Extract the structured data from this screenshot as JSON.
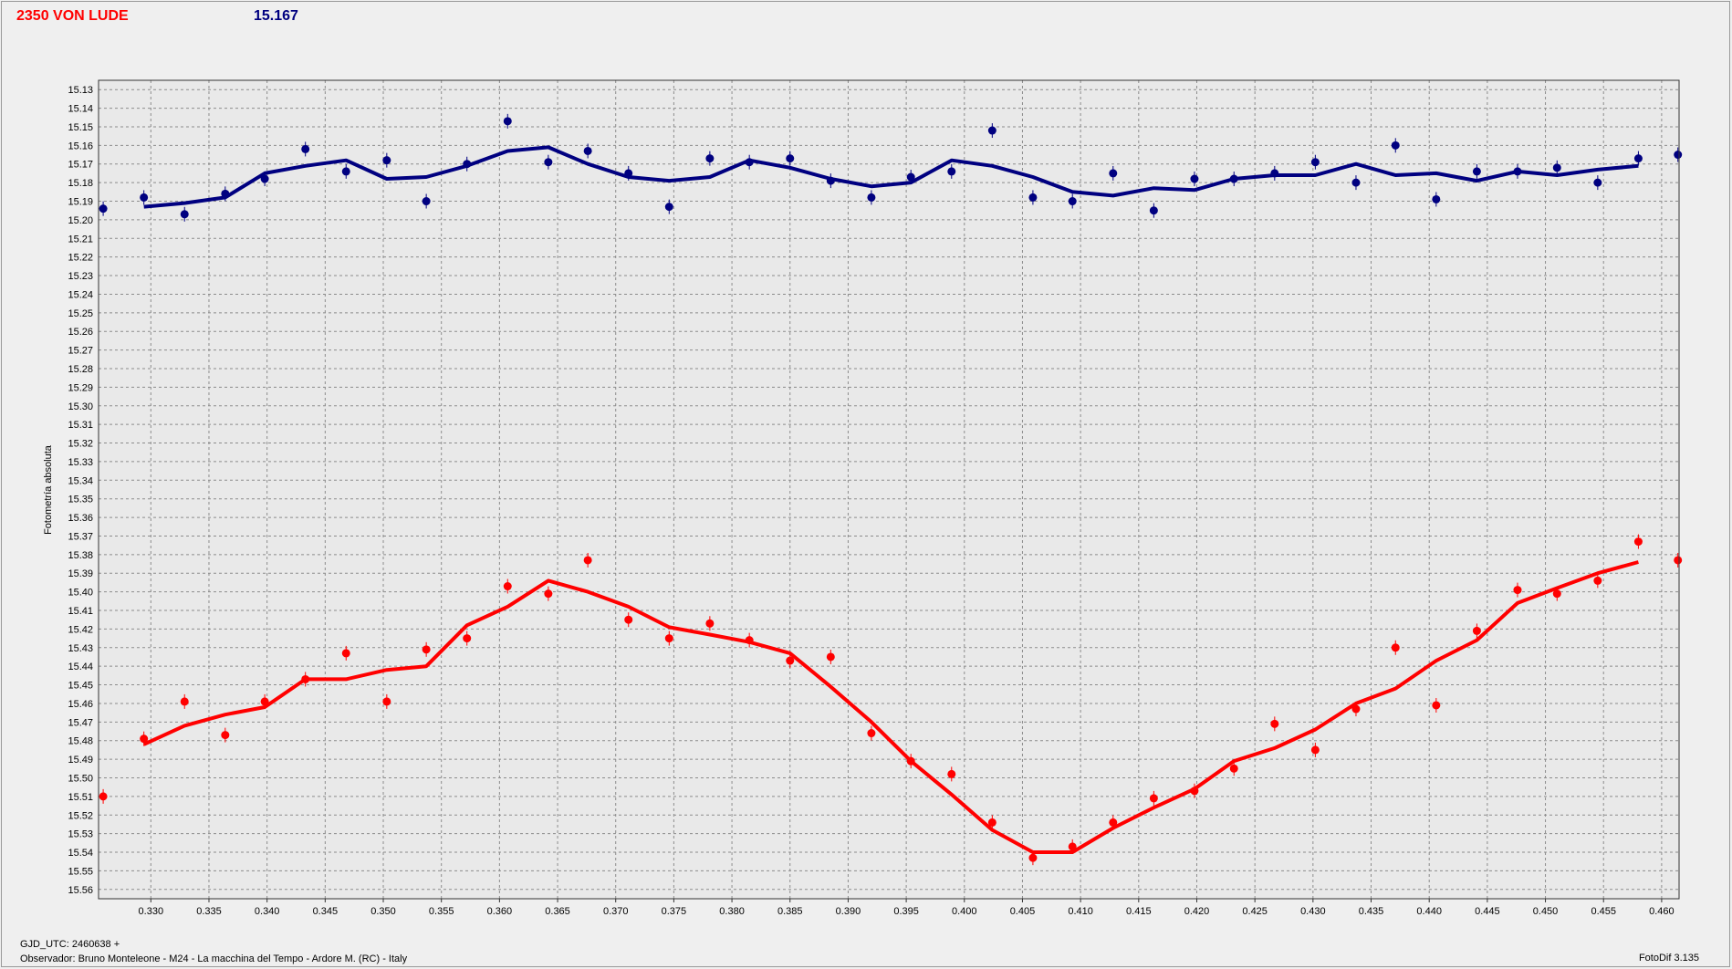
{
  "header": {
    "title": "2350 VON LUDE",
    "magnitude": "15.167"
  },
  "footer": {
    "gjd": "GJD_UTC: 2460638 +",
    "observer": "Observador: Bruno Monteleone - M24 - La macchina del Tempo - Ardore M. (RC) - Italy",
    "software": "FotoDif 3.135"
  },
  "colors": {
    "blue": "#000080",
    "red": "#ff0000",
    "grid": "#8c8c8c",
    "plot_bg": "#e9e9e9",
    "window_bg": "#efefef"
  },
  "chart_data": {
    "type": "scatter",
    "ylabel": "Fotometría absoluta",
    "xlabel": "",
    "xlim": [
      0.3255,
      0.4615
    ],
    "ylim": [
      15.565,
      15.125
    ],
    "y_inverted": true,
    "grid": true,
    "x_ticks": [
      "0.330",
      "0.335",
      "0.340",
      "0.345",
      "0.350",
      "0.355",
      "0.360",
      "0.365",
      "0.370",
      "0.375",
      "0.380",
      "0.385",
      "0.390",
      "0.395",
      "0.400",
      "0.405",
      "0.410",
      "0.415",
      "0.420",
      "0.425",
      "0.430",
      "0.435",
      "0.440",
      "0.445",
      "0.450",
      "0.455",
      "0.460"
    ],
    "y_ticks": [
      "15.13",
      "15.14",
      "15.15",
      "15.16",
      "15.17",
      "15.18",
      "15.19",
      "15.20",
      "15.21",
      "15.22",
      "15.23",
      "15.24",
      "15.25",
      "15.26",
      "15.27",
      "15.28",
      "15.29",
      "15.30",
      "15.31",
      "15.32",
      "15.33",
      "15.34",
      "15.35",
      "15.36",
      "15.37",
      "15.38",
      "15.39",
      "15.40",
      "15.41",
      "15.42",
      "15.43",
      "15.44",
      "15.45",
      "15.46",
      "15.47",
      "15.48",
      "15.49",
      "15.50",
      "15.51",
      "15.52",
      "15.53",
      "15.54",
      "15.55",
      "15.56"
    ],
    "series": [
      {
        "color": "#000080",
        "points_x": [
          0.3259,
          0.3294,
          0.3329,
          0.3364,
          0.3398,
          0.3433,
          0.3468,
          0.3503,
          0.3537,
          0.3572,
          0.3607,
          0.3642,
          0.3676,
          0.3711,
          0.3746,
          0.3781,
          0.3815,
          0.385,
          0.3885,
          0.392,
          0.3954,
          0.3989,
          0.4024,
          0.4059,
          0.4093,
          0.4128,
          0.4163,
          0.4198,
          0.4232,
          0.4267,
          0.4302,
          0.4337,
          0.4371,
          0.4406,
          0.4441,
          0.4476,
          0.451,
          0.4545,
          0.458,
          0.4614
        ],
        "points_y": [
          15.194,
          15.188,
          15.197,
          15.186,
          15.178,
          15.162,
          15.174,
          15.168,
          15.19,
          15.17,
          15.147,
          15.169,
          15.163,
          15.175,
          15.193,
          15.167,
          15.169,
          15.167,
          15.179,
          15.188,
          15.177,
          15.174,
          15.152,
          15.188,
          15.19,
          15.175,
          15.195,
          15.178,
          15.178,
          15.175,
          15.169,
          15.18,
          15.16,
          15.189,
          15.174,
          15.174,
          15.172,
          15.18,
          15.167,
          15.165
        ],
        "line_x": [
          0.3294,
          0.3329,
          0.3364,
          0.3398,
          0.3433,
          0.3468,
          0.3503,
          0.3537,
          0.3572,
          0.3607,
          0.3642,
          0.3676,
          0.3711,
          0.3746,
          0.3781,
          0.3815,
          0.385,
          0.3885,
          0.392,
          0.3954,
          0.3989,
          0.4024,
          0.4059,
          0.4093,
          0.4128,
          0.4163,
          0.4198,
          0.4232,
          0.4267,
          0.4302,
          0.4337,
          0.4371,
          0.4406,
          0.4441,
          0.4476,
          0.451,
          0.4545,
          0.458
        ],
        "line_y": [
          15.193,
          15.191,
          15.188,
          15.175,
          15.171,
          15.168,
          15.178,
          15.177,
          15.171,
          15.163,
          15.161,
          15.17,
          15.177,
          15.179,
          15.177,
          15.168,
          15.172,
          15.178,
          15.182,
          15.18,
          15.168,
          15.171,
          15.177,
          15.185,
          15.187,
          15.183,
          15.184,
          15.178,
          15.176,
          15.176,
          15.17,
          15.176,
          15.175,
          15.179,
          15.174,
          15.176,
          15.173,
          15.171
        ]
      },
      {
        "color": "#ff0000",
        "points_x": [
          0.3259,
          0.3294,
          0.3329,
          0.3364,
          0.3398,
          0.3433,
          0.3468,
          0.3503,
          0.3537,
          0.3572,
          0.3607,
          0.3642,
          0.3676,
          0.3711,
          0.3746,
          0.3781,
          0.3815,
          0.385,
          0.3885,
          0.392,
          0.3954,
          0.3989,
          0.4024,
          0.4059,
          0.4093,
          0.4128,
          0.4163,
          0.4198,
          0.4232,
          0.4267,
          0.4302,
          0.4337,
          0.4371,
          0.4406,
          0.4441,
          0.4476,
          0.451,
          0.4545,
          0.458,
          0.4614
        ],
        "points_y": [
          15.51,
          15.479,
          15.459,
          15.477,
          15.459,
          15.447,
          15.433,
          15.459,
          15.431,
          15.425,
          15.397,
          15.401,
          15.383,
          15.415,
          15.425,
          15.417,
          15.426,
          15.437,
          15.435,
          15.476,
          15.491,
          15.498,
          15.524,
          15.543,
          15.537,
          15.524,
          15.511,
          15.507,
          15.495,
          15.471,
          15.485,
          15.463,
          15.43,
          15.461,
          15.421,
          15.399,
          15.401,
          15.394,
          15.373,
          15.383
        ],
        "line_x": [
          0.3294,
          0.3329,
          0.3364,
          0.3398,
          0.3433,
          0.3468,
          0.3503,
          0.3537,
          0.3572,
          0.3607,
          0.3642,
          0.3676,
          0.3711,
          0.3746,
          0.3781,
          0.3815,
          0.385,
          0.3885,
          0.392,
          0.3954,
          0.3989,
          0.4024,
          0.4059,
          0.4093,
          0.4128,
          0.4163,
          0.4198,
          0.4232,
          0.4267,
          0.4302,
          0.4337,
          0.4371,
          0.4406,
          0.4441,
          0.4476,
          0.451,
          0.4545,
          0.458
        ],
        "line_y": [
          15.482,
          15.472,
          15.466,
          15.462,
          15.447,
          15.447,
          15.442,
          15.44,
          15.418,
          15.408,
          15.394,
          15.4,
          15.408,
          15.419,
          15.423,
          15.427,
          15.433,
          15.451,
          15.47,
          15.491,
          15.509,
          15.528,
          15.54,
          15.54,
          15.527,
          15.516,
          15.506,
          15.491,
          15.484,
          15.474,
          15.46,
          15.452,
          15.437,
          15.426,
          15.406,
          15.398,
          15.39,
          15.384
        ]
      }
    ]
  }
}
